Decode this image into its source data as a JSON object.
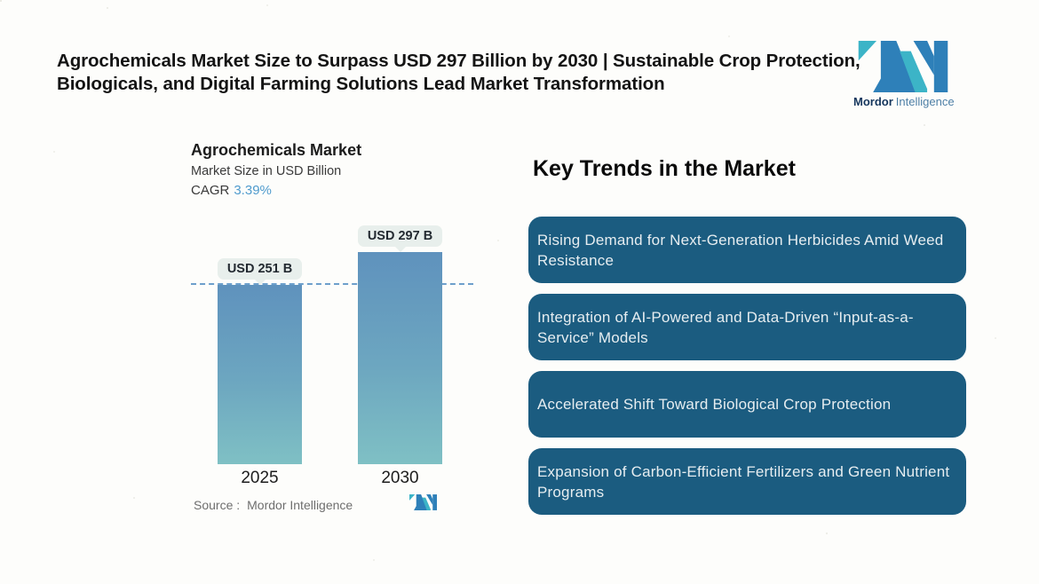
{
  "header": {
    "title": "Agrochemicals Market Size to Surpass USD 297 Billion by 2030 | Sustainable Crop Protection, Biologicals, and Digital Farming Solutions Lead Market Transformation"
  },
  "brand": {
    "name_bold": "Mordor",
    "name_light": "Intelligence"
  },
  "chart": {
    "title": "Agrochemicals Market",
    "subtitle": "Market Size in USD Billion",
    "cagr_label": "CAGR",
    "cagr_value": "3.39%",
    "source_label": "Source :",
    "source_value": "Mordor Intelligence",
    "bars": [
      {
        "year": "2025",
        "label": "USD 251 B"
      },
      {
        "year": "2030",
        "label": "USD 297 B"
      }
    ]
  },
  "chart_data": {
    "type": "bar",
    "categories": [
      "2025",
      "2030"
    ],
    "values": [
      251,
      297
    ],
    "data_labels": [
      "USD 251 B",
      "USD 297 B"
    ],
    "title": "Agrochemicals Market",
    "ylabel": "Market Size in USD Billion",
    "cagr_percent": 3.39,
    "reference_line": 251,
    "ylim": [
      0,
      297
    ],
    "grid": false,
    "legend": false
  },
  "trends": {
    "heading": "Key Trends in the Market",
    "items": [
      "Rising Demand for Next-Generation Herbicides Amid Weed Resistance",
      "Integration of AI-Powered and Data-Driven “Input-as-a-Service” Models",
      "Accelerated Shift Toward Biological Crop Protection",
      "Expansion of Carbon-Efficient Fertilizers and Green Nutrient Programs"
    ]
  },
  "colors": {
    "bar_gradient_top": "#5f92bd",
    "bar_gradient_bottom": "#7fc0c4",
    "trend_box": "#1b5c80",
    "reference_line": "#6d9fcb",
    "cagr_value": "#4f9bcd",
    "logo_blue": "#2e80b9",
    "logo_teal": "#3cb4c7",
    "label_pill": "#e8efec"
  }
}
